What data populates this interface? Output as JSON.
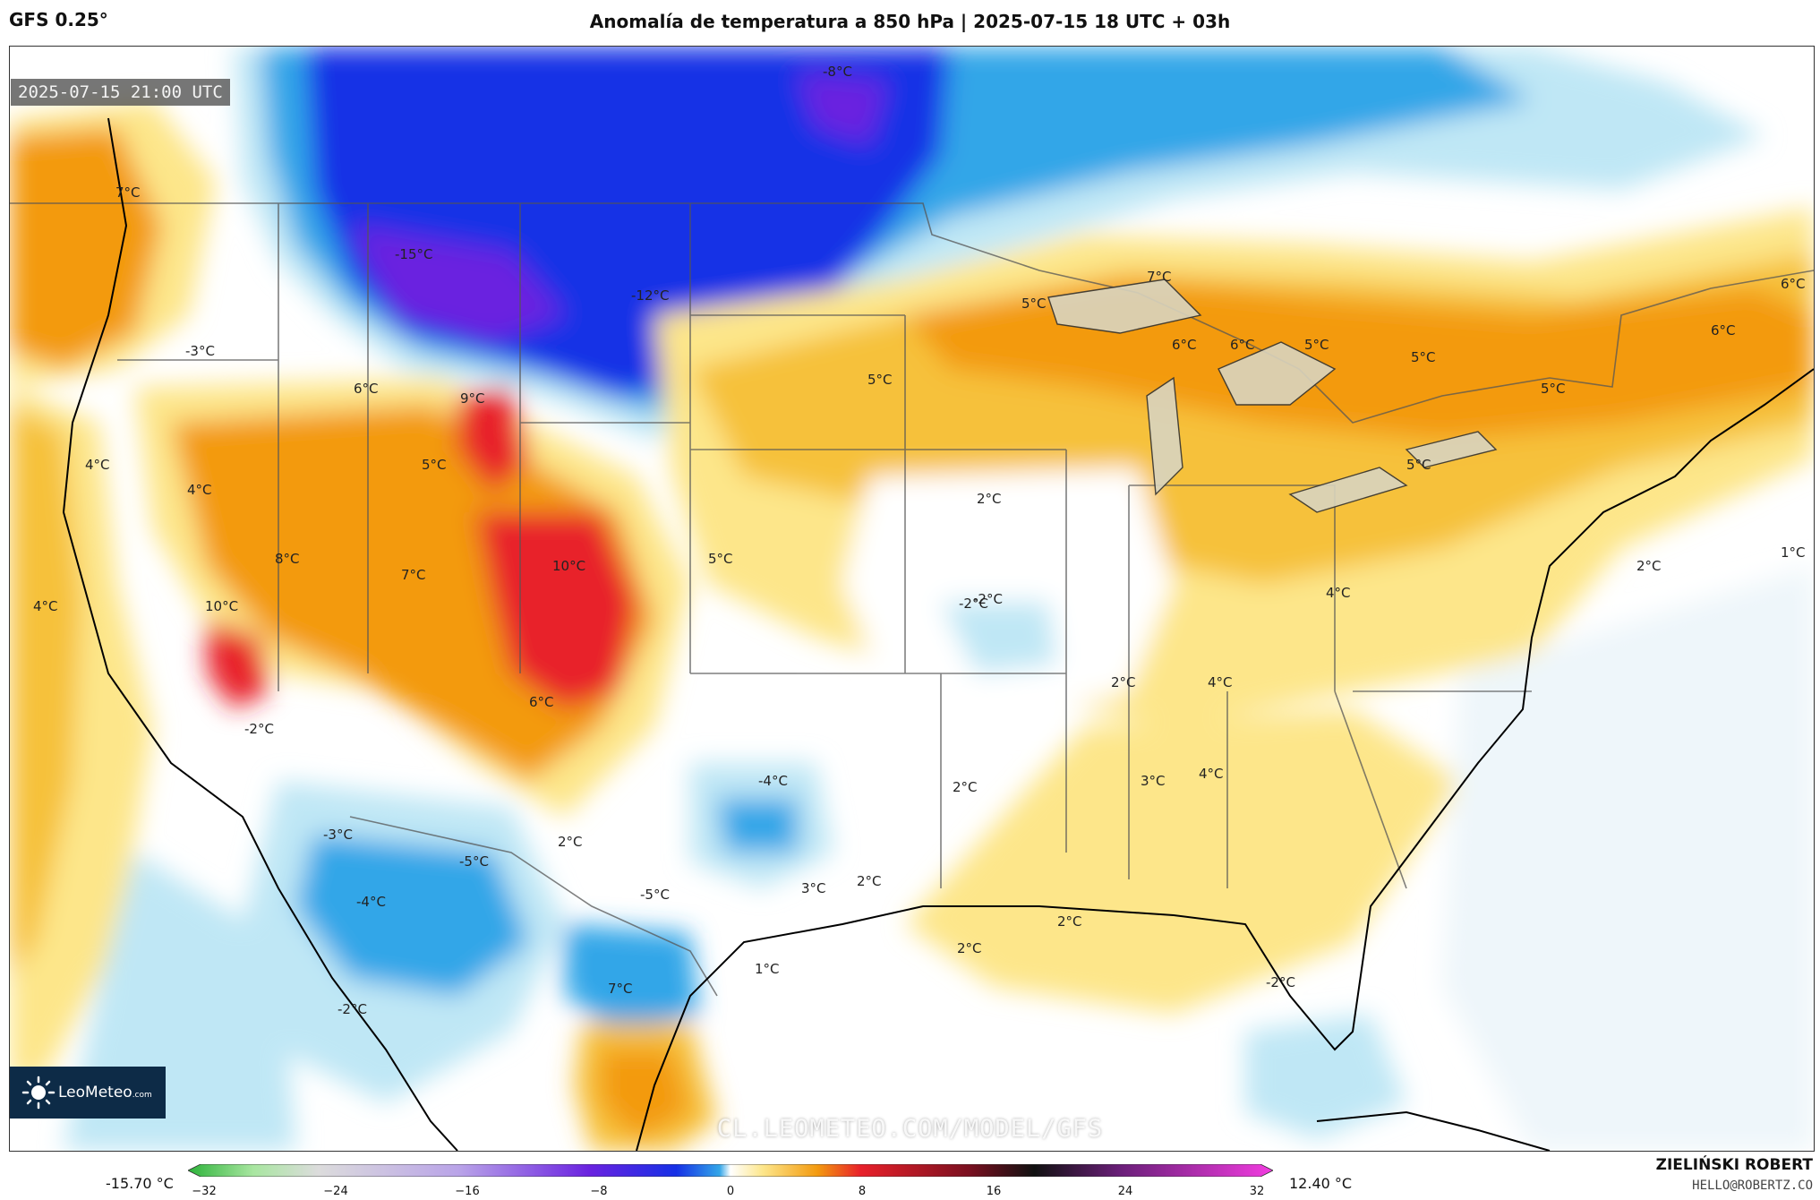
{
  "header": {
    "model": "GFS 0.25°",
    "title": "Anomalía de temperatura a 850 hPa | 2025-07-15 18 UTC + 03h"
  },
  "map": {
    "valid_time": "2025-07-15 21:00 UTC",
    "watermark": "CL.LEOMETEO.COM/MODEL/GFS",
    "labels": [
      "-8°C",
      "7°C",
      "-15°C",
      "-12°C",
      "-3°C",
      "6°C",
      "9°C",
      "7°C",
      "5°C",
      "5°C",
      "6°C",
      "6°C",
      "5°C",
      "5°C",
      "6°C",
      "6°C",
      "5°C",
      "4°C",
      "4°C",
      "5°C",
      "5°C",
      "2°C",
      "8°C",
      "10°C",
      "7°C",
      "5°C",
      "-2°C",
      "4°C",
      "4°C",
      "10°C",
      "1°C",
      "2°C",
      "2°C",
      "4°C",
      "6°C",
      "-2°C",
      "-4°C",
      "2°C",
      "3°C",
      "4°C",
      "-3°C",
      "2°C",
      "-5°C",
      "-4°C",
      "-5°C",
      "3°C",
      "2°C",
      "2°C",
      "2°C",
      "-2°C",
      "1°C",
      "7°C",
      "-2°C",
      "-2°C"
    ]
  },
  "logo": {
    "name": "LeoMeteo",
    "domain": ".com"
  },
  "colorbar": {
    "min_label": "-15.70 °C",
    "max_label": "12.40 °C",
    "ticks": [
      "−32",
      "−24",
      "−16",
      "−8",
      "0",
      "8",
      "16",
      "24",
      "32"
    ],
    "range": [
      -32,
      32
    ]
  },
  "credits": {
    "author": "ZIELIŃSKI ROBERT",
    "email": "HELLO@ROBERTZ.CO"
  },
  "colors": {
    "warm_strong": "#e8202a",
    "warm": "#f39a0f",
    "warm_light": "#fde68a",
    "cold_light": "#bfe7f5",
    "cold": "#33a6e8",
    "cold_strong": "#1630e6",
    "cold_extreme": "#6a22e0"
  }
}
